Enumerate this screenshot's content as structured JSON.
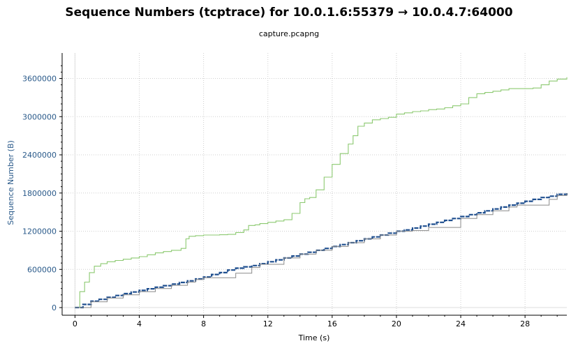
{
  "chart_data": {
    "type": "line",
    "title": "Sequence Numbers (tcptrace) for 10.0.1.6:55379 → 10.0.4.7:64000",
    "subtitle": "capture.pcapng",
    "xlabel": "Time (s)",
    "ylabel": "Sequence Number (B)",
    "xlim": [
      -0.8,
      30.6
    ],
    "ylim": [
      -120000,
      4000000
    ],
    "xticks": [
      0,
      4,
      8,
      12,
      16,
      20,
      24,
      28
    ],
    "yticks": [
      0,
      600000,
      1200000,
      1800000,
      2400000,
      3000000,
      3600000
    ],
    "grid": true,
    "colors": {
      "window": "#8cc970",
      "data": "#1f4f8f",
      "ack": "#8a8a8a",
      "axis": "#000000",
      "grid": "#cfcfcf"
    },
    "series": [
      {
        "role": "window",
        "x": [
          0,
          0.3,
          0.6,
          0.9,
          1.2,
          1.6,
          2,
          2.5,
          3,
          3.5,
          4,
          4.5,
          5,
          5.5,
          6,
          6.6,
          6.9,
          7.1,
          7.5,
          8,
          8.5,
          9,
          9.5,
          10,
          10.5,
          10.8,
          11.2,
          11.5,
          12,
          12.5,
          13,
          13.5,
          14,
          14.3,
          14.6,
          15,
          15.5,
          16,
          16.5,
          17,
          17.3,
          17.6,
          18,
          18.5,
          19,
          19.5,
          20,
          20.5,
          21,
          21.5,
          22,
          22.5,
          23,
          23.5,
          24,
          24.5,
          25,
          25.5,
          26,
          26.5,
          27,
          27.5,
          28,
          28.5,
          29,
          29.5,
          30,
          30.6
        ],
        "y": [
          0,
          250000,
          400000,
          550000,
          650000,
          690000,
          720000,
          740000,
          760000,
          780000,
          800000,
          830000,
          860000,
          880000,
          900000,
          930000,
          1080000,
          1120000,
          1130000,
          1140000,
          1140000,
          1145000,
          1150000,
          1180000,
          1220000,
          1290000,
          1300000,
          1320000,
          1340000,
          1360000,
          1380000,
          1480000,
          1650000,
          1710000,
          1730000,
          1850000,
          2050000,
          2250000,
          2420000,
          2570000,
          2700000,
          2850000,
          2900000,
          2950000,
          2970000,
          2990000,
          3040000,
          3060000,
          3080000,
          3090000,
          3110000,
          3120000,
          3140000,
          3170000,
          3200000,
          3300000,
          3360000,
          3380000,
          3400000,
          3420000,
          3440000,
          3440000,
          3440000,
          3450000,
          3500000,
          3560000,
          3590000,
          3620000
        ]
      },
      {
        "role": "data",
        "x": [
          0,
          0.5,
          1,
          1.5,
          2,
          2.5,
          3,
          3.5,
          4,
          4.5,
          5,
          5.5,
          6,
          6.5,
          7,
          7.5,
          8,
          8.5,
          9,
          9.5,
          10,
          10.5,
          11,
          11.5,
          12,
          12.5,
          13,
          13.5,
          14,
          14.5,
          15,
          15.5,
          16,
          16.5,
          17,
          17.5,
          18,
          18.5,
          19,
          19.5,
          20,
          20.5,
          21,
          21.5,
          22,
          22.5,
          23,
          23.5,
          24,
          24.5,
          25,
          25.5,
          26,
          26.5,
          27,
          27.5,
          28,
          28.5,
          29,
          29.5,
          30,
          30.6
        ],
        "y": [
          0,
          50000,
          100000,
          130000,
          160000,
          190000,
          220000,
          245000,
          270000,
          295000,
          320000,
          345000,
          370000,
          395000,
          420000,
          450000,
          480000,
          520000,
          550000,
          590000,
          620000,
          640000,
          660000,
          690000,
          720000,
          750000,
          780000,
          810000,
          840000,
          870000,
          900000,
          930000,
          960000,
          990000,
          1020000,
          1050000,
          1080000,
          1110000,
          1140000,
          1170000,
          1200000,
          1220000,
          1250000,
          1280000,
          1310000,
          1340000,
          1370000,
          1400000,
          1430000,
          1460000,
          1490000,
          1520000,
          1550000,
          1580000,
          1610000,
          1640000,
          1670000,
          1700000,
          1730000,
          1750000,
          1780000,
          1810000
        ]
      },
      {
        "role": "ack",
        "x": [
          0,
          1,
          2,
          3,
          4,
          5,
          6,
          7,
          7.5,
          8,
          9.5,
          10,
          11,
          11.5,
          12.8,
          13,
          14,
          15,
          16,
          17,
          18,
          19,
          20,
          21,
          22,
          22.5,
          23.5,
          24,
          25,
          26,
          27,
          27.5,
          29,
          29.5,
          30,
          30.6
        ],
        "y": [
          0,
          90000,
          150000,
          200000,
          250000,
          300000,
          350000,
          400000,
          440000,
          470000,
          470000,
          540000,
          630000,
          680000,
          680000,
          780000,
          840000,
          900000,
          960000,
          1020000,
          1080000,
          1140000,
          1200000,
          1210000,
          1260000,
          1260000,
          1260000,
          1400000,
          1460000,
          1520000,
          1580000,
          1610000,
          1610000,
          1700000,
          1760000,
          1800000
        ]
      }
    ]
  }
}
